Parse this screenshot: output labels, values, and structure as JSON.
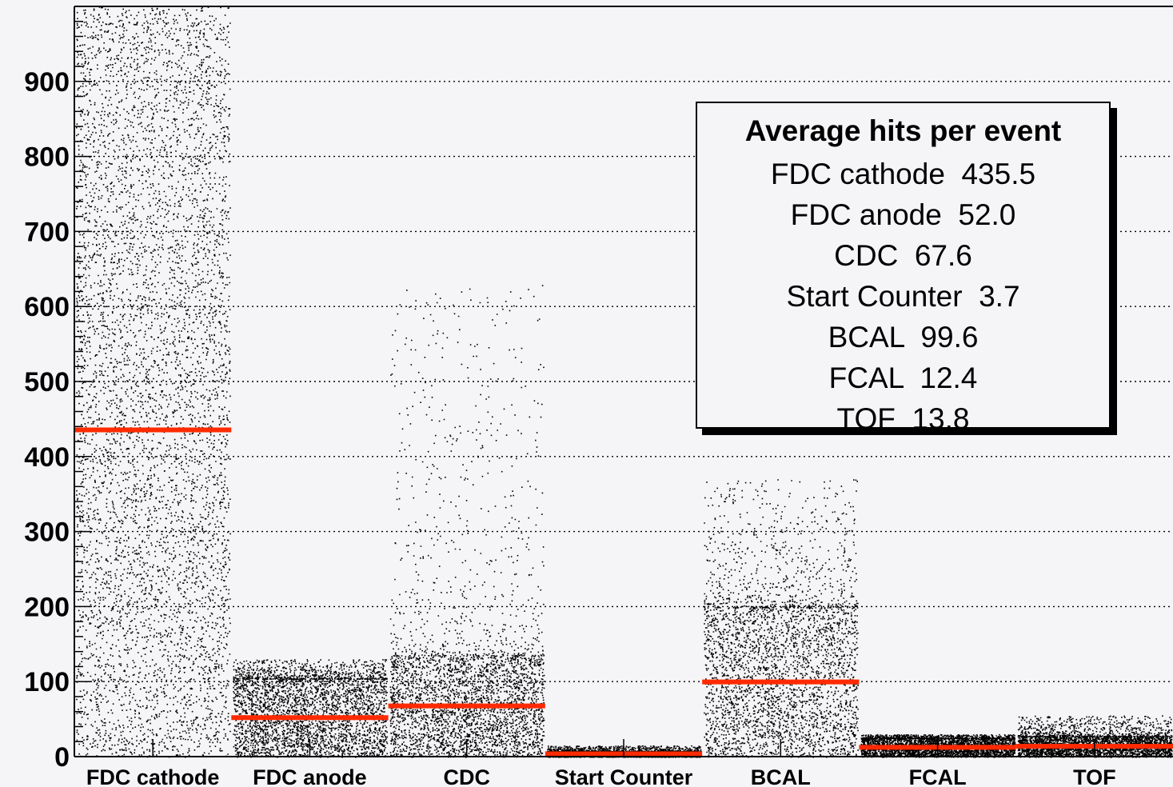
{
  "chart_data": {
    "type": "scatter",
    "categories": [
      "FDC cathode",
      "FDC anode",
      "CDC",
      "Start Counter",
      "BCAL",
      "FCAL",
      "TOF"
    ],
    "ylim": [
      0,
      1000
    ],
    "yticks": [
      0,
      100,
      200,
      300,
      400,
      500,
      600,
      700,
      800,
      900
    ],
    "grid": true,
    "means": [
      435.5,
      52.0,
      67.6,
      3.7,
      99.6,
      12.4,
      13.8
    ],
    "distribution_upper": [
      1000,
      130,
      630,
      15,
      370,
      30,
      55
    ],
    "mean_color": "#ff2a00",
    "point_color": "#000000",
    "legend": {
      "placement": "top-right",
      "title": "Average hits per event",
      "entries": [
        {
          "label": "FDC cathode",
          "value": "435.5"
        },
        {
          "label": "FDC anode",
          "value": "52.0"
        },
        {
          "label": "CDC",
          "value": "67.6"
        },
        {
          "label": "Start Counter",
          "value": "3.7"
        },
        {
          "label": "BCAL",
          "value": "99.6"
        },
        {
          "label": "FCAL",
          "value": "12.4"
        },
        {
          "label": "TOF",
          "value": "13.8"
        }
      ]
    }
  }
}
